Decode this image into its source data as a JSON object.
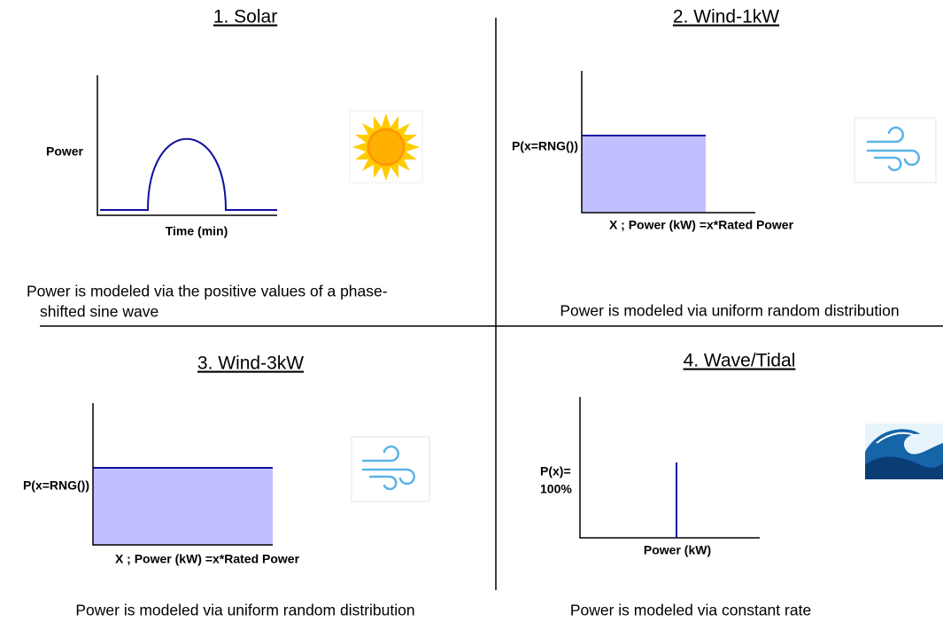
{
  "quadrants": [
    {
      "title": "1. Solar",
      "ylabel": [
        "Power"
      ],
      "xlabel": "Time (min)",
      "description": [
        "Power is modeled via the positive values of a phase-",
        "shifted sine wave"
      ]
    },
    {
      "title": "2. Wind-1kW",
      "ylabel": [
        "P(x=RNG())"
      ],
      "xlabel": "X ; Power (kW) =x*Rated Power",
      "description": [
        "Power is modeled via uniform random distribution"
      ]
    },
    {
      "title": "3. Wind-3kW",
      "ylabel": [
        "P(x=RNG())"
      ],
      "xlabel": "X ; Power (kW) =x*Rated Power",
      "description": [
        "Power is modeled via uniform random distribution"
      ]
    },
    {
      "title": "4. Wave/Tidal",
      "ylabel": [
        "P(x)=",
        "100%"
      ],
      "xlabel": "Power (kW)",
      "description": [
        "Power is modeled via constant rate"
      ]
    }
  ]
}
